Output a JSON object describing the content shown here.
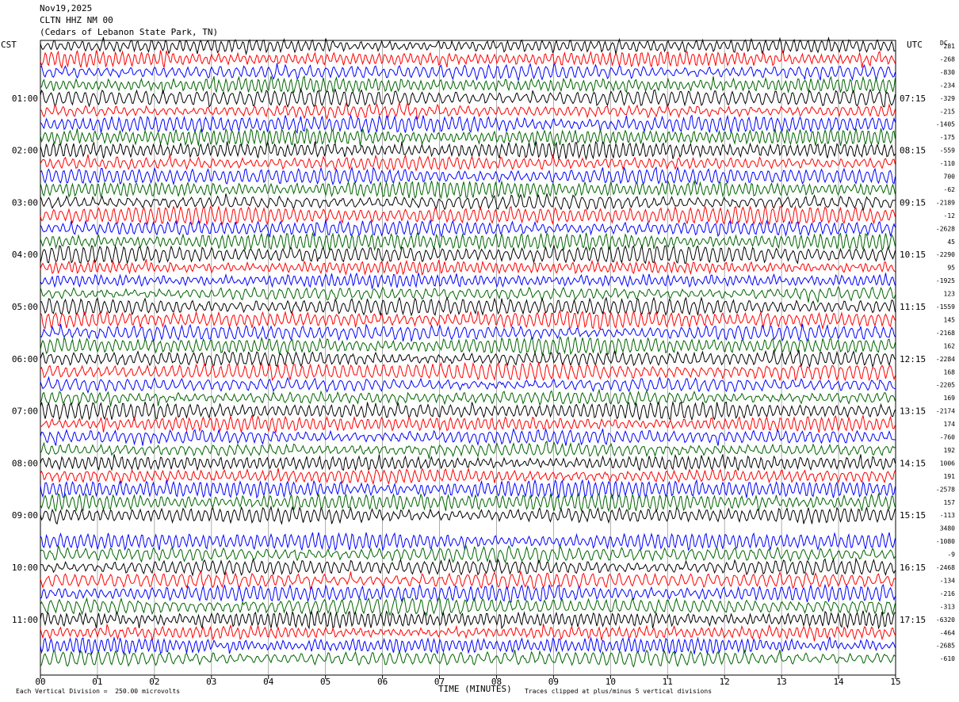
{
  "header": {
    "date": "Nov19,2025",
    "station": "CLTN HHZ NM 00",
    "location": "(Cedars of Lebanon State Park, TN)"
  },
  "footer": {
    "scale": "Each Vertical Division =  250.00 microvolts",
    "clip": "Traces clipped at plus/minus 5 vertical divisions"
  },
  "chart_data": {
    "type": "line",
    "subtype": "helicorder",
    "xlabel": "TIME (MINUTES)",
    "x_ticks": [
      "00",
      "01",
      "02",
      "03",
      "04",
      "05",
      "06",
      "07",
      "08",
      "09",
      "10",
      "11",
      "12",
      "13",
      "14",
      "15"
    ],
    "xlim": [
      0,
      15
    ],
    "left_axis_title": "CST",
    "right_axis_title": "UTC",
    "dc_title": "DC",
    "left_hour_labels": [
      "01:00",
      "02:00",
      "03:00",
      "04:00",
      "05:00",
      "06:00",
      "07:00",
      "08:00",
      "09:00",
      "10:00",
      "11:00"
    ],
    "right_hour_labels": [
      "07:15",
      "08:15",
      "09:15",
      "10:15",
      "11:15",
      "12:15",
      "13:15",
      "14:15",
      "15:15",
      "16:15",
      "17:15"
    ],
    "traces_per_hour": 4,
    "num_traces": 48,
    "trace_colors": [
      "#000000",
      "#ff0000",
      "#0000ff",
      "#006400"
    ],
    "empty_trace": 37,
    "dc_offsets": [
      "281",
      "-268",
      "-830",
      "-234",
      "-329",
      "-215",
      "-1405",
      "-175",
      "-559",
      "-110",
      "700",
      "-62",
      "-2189",
      "-12",
      "-2628",
      "45",
      "-2290",
      "95",
      "-1925",
      "123",
      "-1559",
      "145",
      "-2168",
      "162",
      "-2284",
      "168",
      "-2205",
      "169",
      "-2174",
      "174",
      "-760",
      "192",
      "1006",
      "191",
      "-2578",
      "157",
      "-113",
      "3480",
      "-1080",
      "-9",
      "-2468",
      "-134",
      "-216",
      "-313",
      "-6320",
      "-464",
      "-2685",
      "-610"
    ],
    "grid": true
  }
}
